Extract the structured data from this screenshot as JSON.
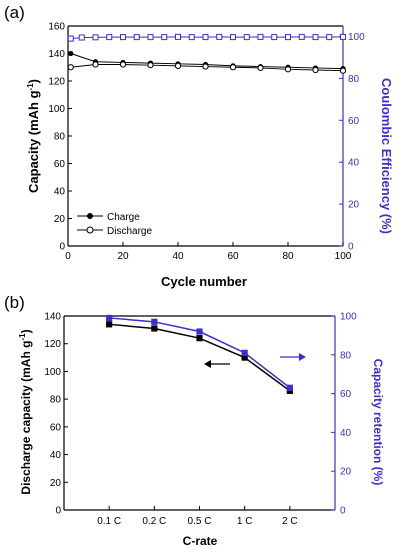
{
  "colors": {
    "axis_left": "#000000",
    "axis_right": "#3a2fd1",
    "charge": "#000000",
    "discharge": "#000000",
    "efficiency": "#3a2fd1"
  },
  "chart_data": [
    {
      "panel_label": "(a)",
      "type": "line",
      "xlabel": "Cycle number",
      "ylabel": "Capacity (mAh g",
      "ylabel_sup": "-1",
      "ylabel_right": "Coulombic Efficiency (%)",
      "xlim": [
        0,
        100
      ],
      "ylim": [
        0,
        160
      ],
      "ylim_right": [
        0,
        105
      ],
      "x_ticks": [
        0,
        20,
        40,
        60,
        80,
        100
      ],
      "y_ticks": [
        0,
        20,
        40,
        60,
        80,
        100,
        120,
        140,
        160
      ],
      "y_ticks_right": [
        0,
        20,
        40,
        60,
        80,
        100
      ],
      "legend_position": "bottom-left",
      "series": [
        {
          "name": "Charge",
          "axis": "left",
          "marker": "filled-circle",
          "x": [
            1,
            10,
            20,
            30,
            40,
            50,
            60,
            70,
            80,
            90,
            100
          ],
          "y": [
            140,
            134,
            133.5,
            133,
            132.5,
            132,
            131,
            130.5,
            130,
            129.5,
            129
          ]
        },
        {
          "name": "Discharge",
          "axis": "left",
          "marker": "open-circle",
          "x": [
            1,
            10,
            20,
            30,
            40,
            50,
            60,
            70,
            80,
            90,
            100
          ],
          "y": [
            130,
            132,
            132,
            131.5,
            131,
            130.5,
            130,
            129.5,
            128.5,
            128,
            127.5
          ]
        },
        {
          "axis": "right",
          "marker": "open-square",
          "x": [
            1,
            5,
            10,
            15,
            20,
            25,
            30,
            35,
            40,
            45,
            50,
            55,
            60,
            65,
            70,
            75,
            80,
            85,
            90,
            95,
            100
          ],
          "y": [
            99,
            99.5,
            99.6,
            99.7,
            99.7,
            99.7,
            99.7,
            99.7,
            99.8,
            99.7,
            99.7,
            99.8,
            99.7,
            99.7,
            99.8,
            99.7,
            99.7,
            99.8,
            99.7,
            99.7,
            99.8
          ]
        }
      ]
    },
    {
      "panel_label": "(b)",
      "type": "line",
      "xlabel": "C-rate",
      "ylabel": "Discharge capacity (mAh g",
      "ylabel_sup": "-1",
      "ylabel_right": "Capacity retention (%)",
      "categories": [
        "0.1 C",
        "0.2 C",
        "0.5 C",
        "1 C",
        "2 C"
      ],
      "ylim": [
        0,
        140
      ],
      "ylim_right": [
        0,
        100
      ],
      "y_ticks": [
        0,
        20,
        40,
        60,
        80,
        100,
        120,
        140
      ],
      "y_ticks_right": [
        0,
        20,
        40,
        60,
        80,
        100
      ],
      "series": [
        {
          "axis": "left",
          "marker": "filled-square",
          "values": [
            134,
            131,
            124,
            110,
            86
          ]
        },
        {
          "axis": "right",
          "marker": "filled-square",
          "values": [
            99,
            97,
            92,
            81,
            63
          ]
        }
      ]
    }
  ]
}
